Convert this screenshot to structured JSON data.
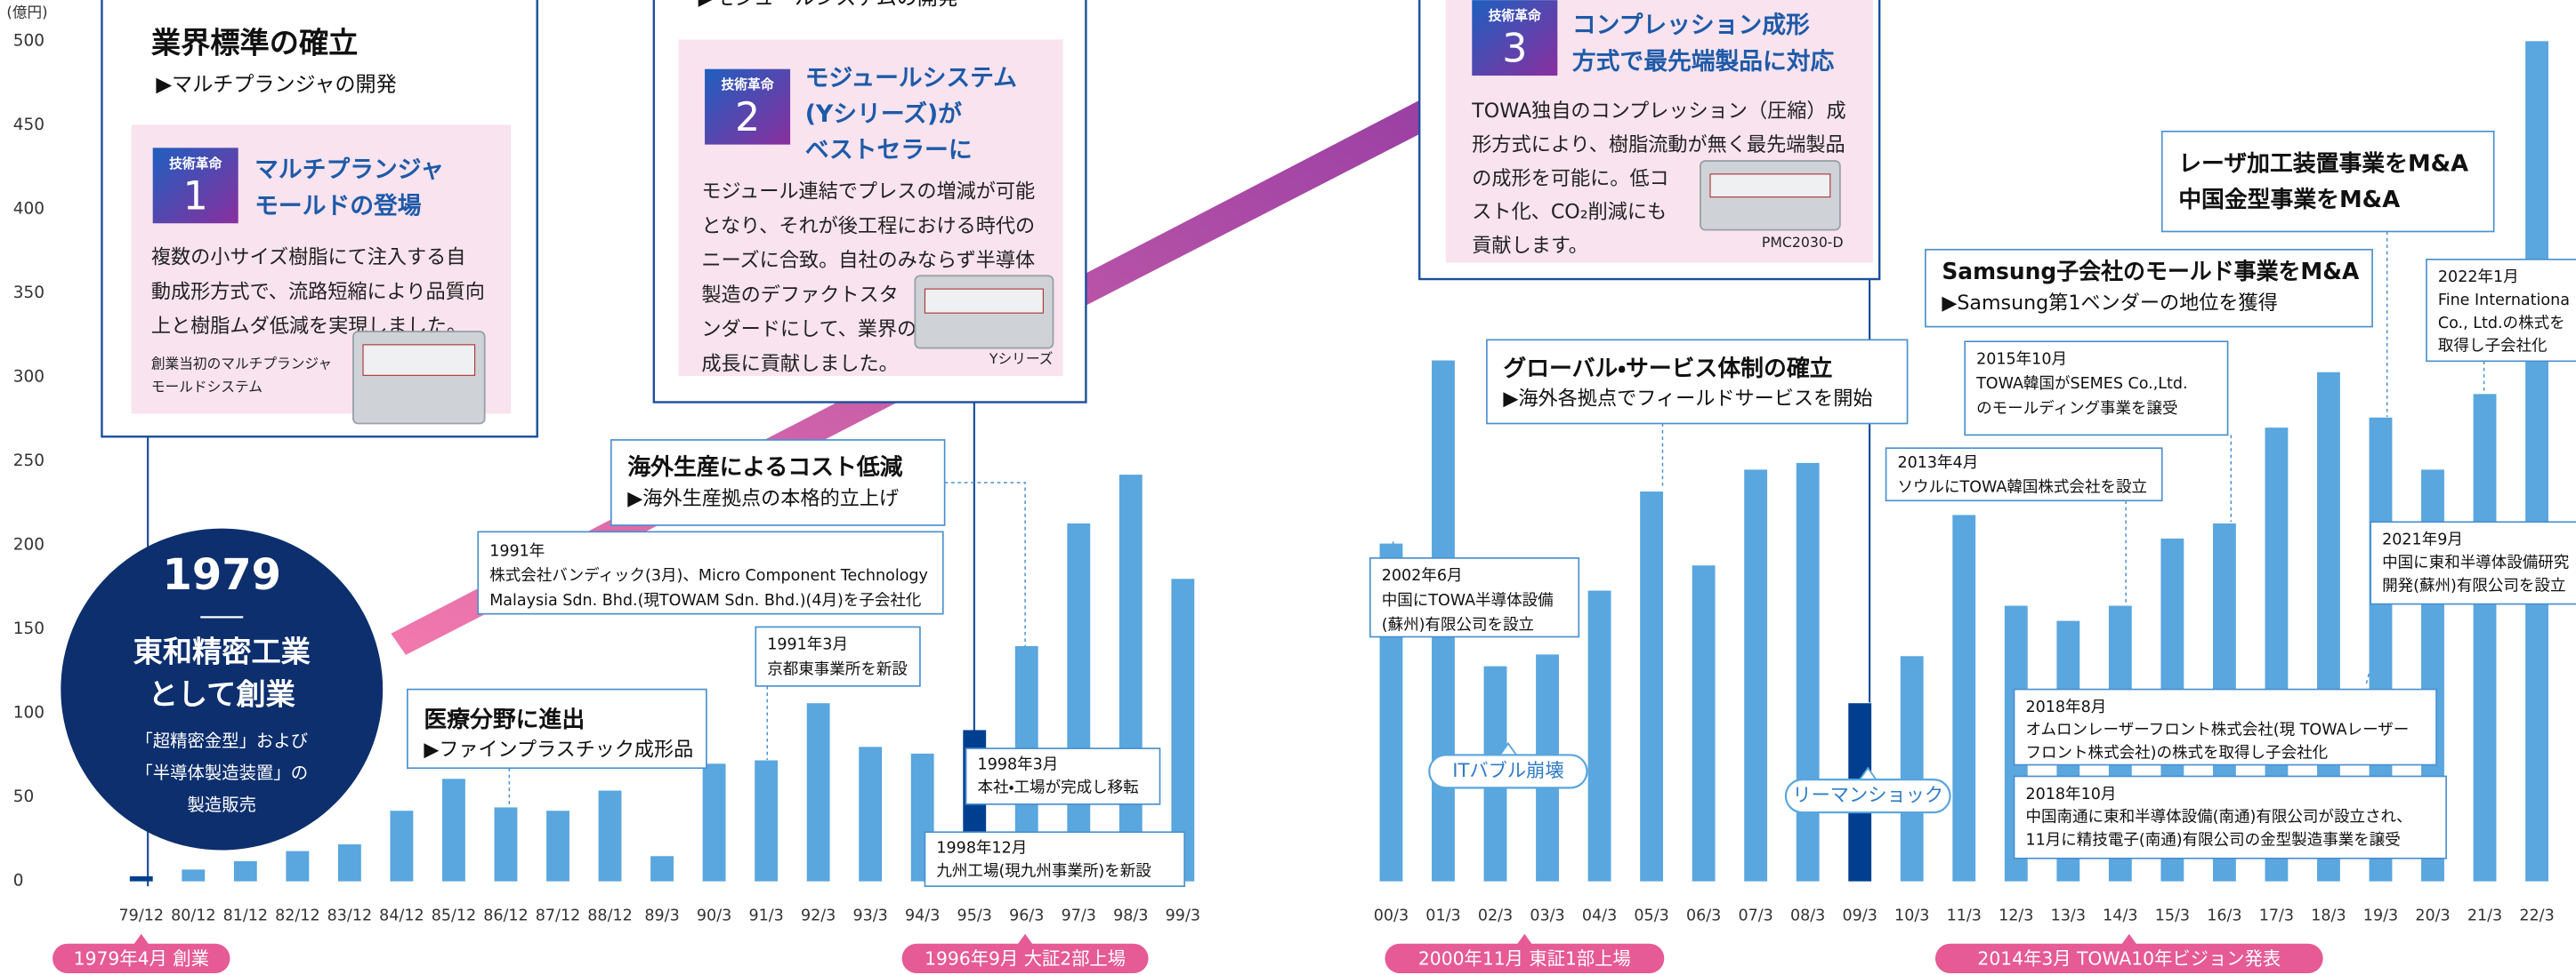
{
  "chart_data": {
    "type": "bar",
    "y_unit": "(億円)",
    "categories": [
      "79/12",
      "80/12",
      "81/12",
      "82/12",
      "83/12",
      "84/12",
      "85/12",
      "86/12",
      "87/12",
      "88/12",
      "89/3",
      "90/3",
      "91/3",
      "92/3",
      "93/3",
      "94/3",
      "95/3",
      "96/3",
      "97/3",
      "98/3",
      "99/3",
      null,
      null,
      null,
      "00/3",
      "01/3",
      "02/3",
      "03/3",
      "04/3",
      "05/3",
      "06/3",
      "07/3",
      "08/3",
      "09/3",
      "10/3",
      "11/3",
      "12/3",
      "13/3",
      "14/3",
      "15/3",
      "16/3",
      "17/3",
      "18/3",
      "19/3",
      "20/3",
      "21/3",
      "22/3"
    ],
    "values": [
      3,
      7,
      12,
      18,
      22,
      42,
      61,
      44,
      42,
      54,
      15,
      70,
      72,
      106,
      80,
      76,
      90,
      140,
      213,
      242,
      180,
      null,
      null,
      null,
      201,
      310,
      128,
      135,
      173,
      232,
      188,
      245,
      249,
      106,
      134,
      218,
      164,
      155,
      164,
      204,
      213,
      270,
      303,
      276,
      245,
      290,
      500
    ],
    "colors": [
      "#003f8f",
      "#5aa6de",
      "#5aa6de",
      "#5aa6de",
      "#5aa6de",
      "#5aa6de",
      "#5aa6de",
      "#5aa6de",
      "#5aa6de",
      "#5aa6de",
      "#5aa6de",
      "#5aa6de",
      "#5aa6de",
      "#5aa6de",
      "#5aa6de",
      "#5aa6de",
      "#003f8f",
      "#5aa6de",
      "#5aa6de",
      "#5aa6de",
      "#5aa6de",
      null,
      null,
      null,
      "#5aa6de",
      "#5aa6de",
      "#5aa6de",
      "#5aa6de",
      "#5aa6de",
      "#5aa6de",
      "#5aa6de",
      "#5aa6de",
      "#5aa6de",
      "#003f8f",
      "#5aa6de",
      "#5aa6de",
      "#5aa6de",
      "#5aa6de",
      "#5aa6de",
      "#5aa6de",
      "#5aa6de",
      "#5aa6de",
      "#5aa6de",
      "#5aa6de",
      "#5aa6de",
      "#5aa6de",
      "#5aa6de"
    ],
    "ylim": [
      0,
      500
    ],
    "yticks": [
      0,
      50,
      100,
      150,
      200,
      250,
      300,
      350,
      400,
      450,
      500
    ],
    "grid": false,
    "founding": {
      "year": "1979",
      "lines": [
        "東和精密工業",
        "として創業"
      ],
      "sub": [
        "「超精密金型」および",
        "「半導体製造装置」の",
        "製造販売"
      ]
    },
    "eras": [
      {
        "title": "業界標準の確立",
        "subtitle": "▶マルチプランジャの開発",
        "innovation": {
          "badge": "技術革命",
          "number": "1",
          "heading": [
            "マルチプランジャ",
            "モールドの登場"
          ],
          "body": [
            "複数の小サイズ樹脂にて注入する自",
            "動成形方式で、流路短縮により品質向",
            "上と樹脂ムダ低減を実現しました。"
          ],
          "caption": [
            "創業当初のマルチプランジャ",
            "モールドシステム"
          ]
        }
      },
      {
        "subtitle": "▶モジュールシステムの開発",
        "innovation": {
          "badge": "技術革命",
          "number": "2",
          "heading": [
            "モジュールシステム",
            "(Yシリーズ)が",
            "ベストセラーに"
          ],
          "body": [
            "モジュール連結でプレスの増減が可能",
            "となり、それが後工程における時代の",
            "ニーズに合致。自社のみならず半導体",
            "製造のデファクトスタ",
            "ンダードにして、業界の",
            "成長に貢献しました。"
          ],
          "caption": [
            "Yシリーズ"
          ]
        }
      },
      {
        "innovation": {
          "badge": "技術革命",
          "number": "3",
          "heading": [
            "コンプレッション成形",
            "方式で最先端製品に対応"
          ],
          "body": [
            "TOWA独自のコンプレッション（圧縮）成",
            "形方式により、樹脂流動が無く最先端製品",
            "の成形を可能に。低コ",
            "スト化、CO₂削減にも",
            "貢献します。"
          ],
          "caption": [
            "PMC2030-D"
          ]
        }
      }
    ],
    "callouts": [
      {
        "lines": [
          "海外生産によるコスト低減",
          "▶海外生産拠点の本格的立上げ"
        ]
      },
      {
        "lines": [
          "1991年",
          "株式会社バンディック(3月)、Micro Component Technology",
          "Malaysia Sdn. Bhd.(現TOWAM Sdn. Bhd.)(4月)を子会社化"
        ]
      },
      {
        "lines": [
          "1991年3月",
          "京都東事業所を新設"
        ]
      },
      {
        "lines": [
          "医療分野に進出",
          "▶ファインプラスチック成形品"
        ]
      },
      {
        "lines": [
          "1998年3月",
          "本社・工場が完成し移転"
        ]
      },
      {
        "lines": [
          "1998年12月",
          "九州工場(現九州事業所)を新設"
        ]
      },
      {
        "lines": [
          "2002年6月",
          "中国にTOWA半導体設備",
          "(蘇州)有限公司を設立"
        ]
      },
      {
        "lines": [
          "グローバル・サービス体制の確立",
          "▶海外各拠点でフィールドサービスを開始"
        ]
      },
      {
        "lines": [
          "Samsung子会社のモールド事業をM&A",
          "▶Samsung第1ベンダーの地位を獲得"
        ]
      },
      {
        "lines": [
          "2015年10月",
          "TOWA韓国がSEMES Co.,Ltd.",
          "のモールディング事業を譲受"
        ]
      },
      {
        "lines": [
          "2013年4月",
          "ソウルにTOWA韓国株式会社を設立"
        ]
      },
      {
        "lines": [
          "レーザ加工装置事業をM&A",
          "中国金型事業をM&A"
        ]
      },
      {
        "lines": [
          "2022年1月",
          "Fine Internationa",
          "Co., Ltd.の株式を",
          "取得し子会社化"
        ]
      },
      {
        "lines": [
          "2021年9月",
          "中国に東和半導体設備研究",
          "開発(蘇州)有限公司を設立"
        ]
      },
      {
        "lines": [
          "2018年8月",
          "オムロンレーザーフロント株式会社(現 TOWAレーザー",
          "フロント株式会社)の株式を取得し子会社化"
        ]
      },
      {
        "lines": [
          "2018年10月",
          "中国南通に東和半導体設備(南通)有限公司が設立され、",
          "11月に精技電子(南通)有限公司の金型製造事業を譲受"
        ]
      }
    ],
    "events": [
      "ITバブル崩壊",
      "リーマンショック"
    ],
    "milestones": [
      "1979年4月 創業",
      "1996年9月 大証2部上場",
      "2000年11月 東証1部上場",
      "2014年3月 TOWA10年ビジョン発表"
    ]
  }
}
